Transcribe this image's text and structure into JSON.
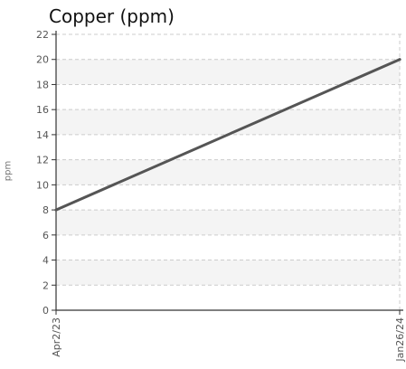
{
  "chart_data": {
    "type": "line",
    "title": "Copper (ppm)",
    "xlabel": "",
    "ylabel": "ppm",
    "categories": [
      "Apr2/23",
      "Jan26/24"
    ],
    "series": [
      {
        "values": [
          8,
          20
        ]
      }
    ],
    "ylim": [
      0,
      22
    ],
    "y_ticks": [
      0,
      2,
      4,
      6,
      8,
      10,
      12,
      14,
      16,
      18,
      20,
      22
    ],
    "grid": true,
    "x_tick_rotation": "vertical",
    "colors": {
      "line": "#555555",
      "axis": "#333333",
      "grid": "#cccccc",
      "band": "#f4f4f4",
      "tick_label": "#555555"
    }
  }
}
